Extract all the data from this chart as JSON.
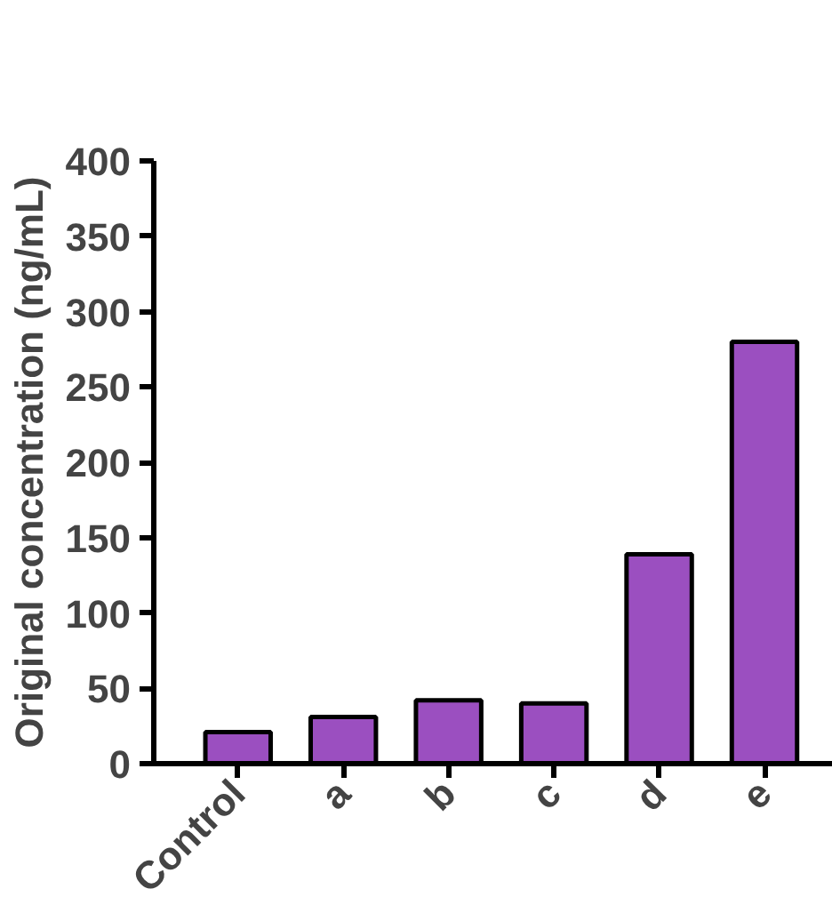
{
  "chart_data": {
    "type": "bar",
    "ylabel": "Original concentration (ng/mL)",
    "categories": [
      "Control",
      "a",
      "b",
      "c",
      "d",
      "e"
    ],
    "values": [
      21,
      31,
      42,
      40,
      139,
      280
    ],
    "color": "#9b4fc0",
    "ylim": [
      0,
      400
    ],
    "yticks": [
      0,
      50,
      100,
      150,
      200,
      250,
      300,
      350,
      400
    ],
    "grid": false
  }
}
